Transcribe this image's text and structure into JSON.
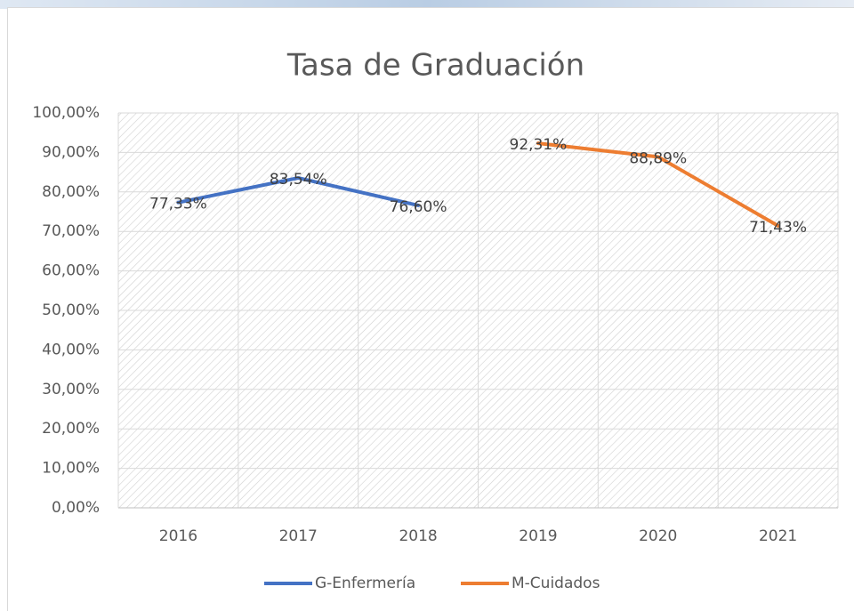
{
  "chart_data": {
    "type": "line",
    "title": "Tasa de Graduación",
    "categories": [
      "2016",
      "2017",
      "2018",
      "2019",
      "2020",
      "2021"
    ],
    "series": [
      {
        "name": "G-Enfermería",
        "color": "#4472c4",
        "values": [
          77.33,
          83.54,
          76.6,
          null,
          null,
          null
        ],
        "value_labels": [
          "77,33%",
          "83,54%",
          "76,60%",
          null,
          null,
          null
        ]
      },
      {
        "name": "M-Cuidados",
        "color": "#ed7d31",
        "values": [
          null,
          null,
          null,
          92.31,
          88.89,
          71.43
        ],
        "value_labels": [
          null,
          null,
          null,
          "92,31%",
          "88,89%",
          "71,43%"
        ]
      }
    ],
    "ylim": [
      0,
      100
    ],
    "yticks": [
      {
        "value": 0,
        "label": "0,00%"
      },
      {
        "value": 10,
        "label": "10,00%"
      },
      {
        "value": 20,
        "label": "20,00%"
      },
      {
        "value": 30,
        "label": "30,00%"
      },
      {
        "value": 40,
        "label": "40,00%"
      },
      {
        "value": 50,
        "label": "50,00%"
      },
      {
        "value": 60,
        "label": "60,00%"
      },
      {
        "value": 70,
        "label": "70,00%"
      },
      {
        "value": 80,
        "label": "80,00%"
      },
      {
        "value": 90,
        "label": "90,00%"
      },
      {
        "value": 100,
        "label": "100,00%"
      }
    ],
    "grid": true,
    "legend": "bottom"
  }
}
